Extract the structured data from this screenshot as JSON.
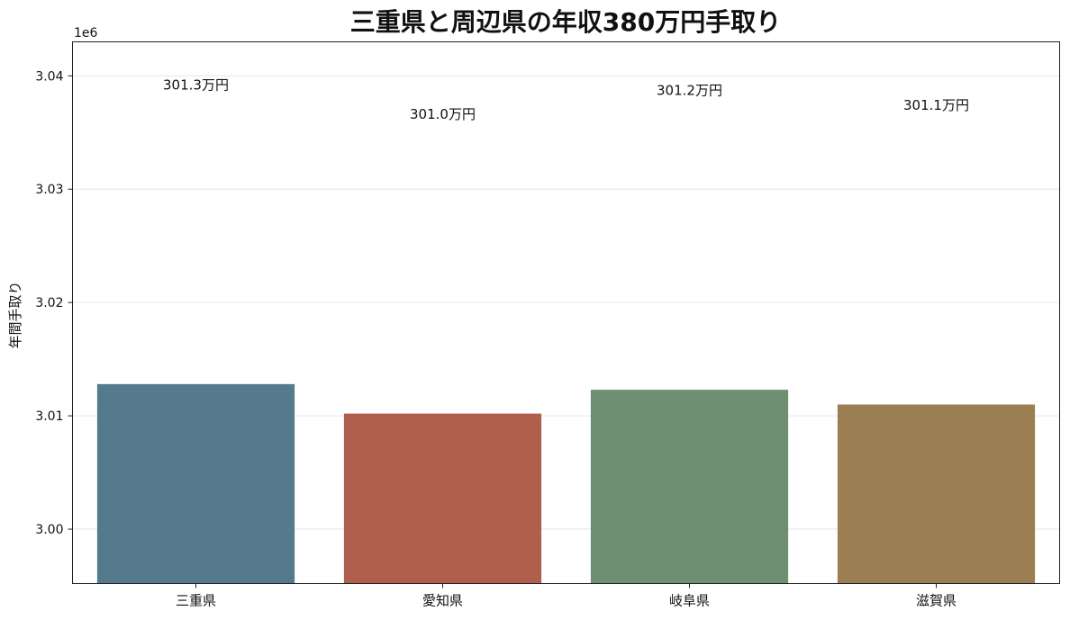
{
  "chart_data": {
    "type": "bar",
    "title": "三重県と周辺県の年収380万円手取り",
    "xlabel": "",
    "ylabel": "年間手取り",
    "y_offset_label": "1e6",
    "categories": [
      "三重県",
      "愛知県",
      "岐阜県",
      "滋賀県"
    ],
    "values": [
      3012800,
      3010200,
      3012300,
      3011000
    ],
    "value_labels": [
      "301.3万円",
      "301.0万円",
      "301.2万円",
      "301.1万円"
    ],
    "ylim": [
      2995200,
      3043000
    ],
    "yticks": [
      3000000,
      3010000,
      3020000,
      3030000,
      3040000
    ],
    "ytick_labels": [
      "3.00",
      "3.01",
      "3.02",
      "3.03",
      "3.04"
    ],
    "grid": true,
    "legend": "none",
    "colors": [
      "#557a8c",
      "#b05e4e",
      "#6e8e72",
      "#9b7e52"
    ]
  }
}
